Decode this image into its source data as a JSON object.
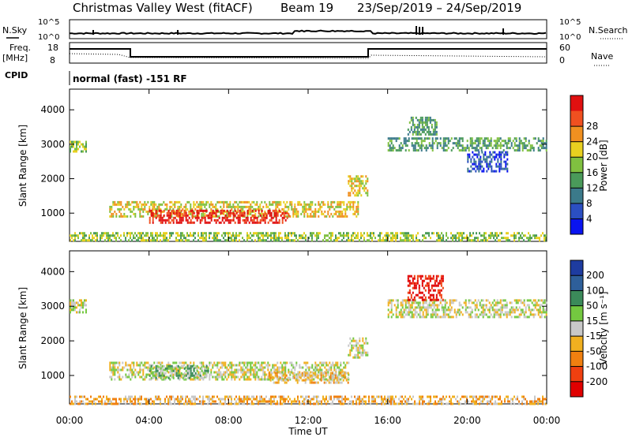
{
  "header": {
    "title": "Christmas Valley West (fitACF)",
    "beam": "Beam 19",
    "date_range": "23/Sep/2019 – 24/Sep/2019"
  },
  "summary_panels": {
    "nsky_label": "N.Sky",
    "nsky_tick_top": "10^5",
    "nsky_tick_bottom": "10^0",
    "nsearch_label": "N.Search",
    "nsearch_tick_top": "10^5",
    "nsearch_tick_bottom": "10^0",
    "freq_label_line1": "Freq.",
    "freq_label_line2": "[MHz]",
    "freq_tick_top": "18",
    "freq_tick_bottom": "8",
    "nave_label": "Nave",
    "nave_tick_top": "60",
    "nave_tick_bottom": "0",
    "cpid_label": "CPID",
    "cpid_text": "normal (fast) -151 RF"
  },
  "chart_data": [
    {
      "type": "heatmap",
      "panel": "power",
      "ylabel": "Slant Range [km]",
      "xlabel": "",
      "x_tick_labels": [
        "00:00",
        "04:00",
        "08:00",
        "12:00",
        "16:00",
        "20:00",
        "00:00"
      ],
      "y_tick_labels": [
        "1000",
        "2000",
        "3000",
        "4000"
      ],
      "xlim": [
        0,
        24
      ],
      "ylim": [
        180,
        4600
      ],
      "colorbar": {
        "label": "Power [dB]",
        "ticks": [
          "4",
          "8",
          "12",
          "16",
          "20",
          "24",
          "28"
        ],
        "colors": [
          "#0a14f0",
          "#2b4fc2",
          "#3b7a8a",
          "#4a9a5a",
          "#80c040",
          "#e8d020",
          "#f09020",
          "#f05020",
          "#e01010"
        ]
      },
      "regions": [
        {
          "x0": 2.0,
          "x1": 14.5,
          "y0": 900,
          "y1": 1350,
          "level": 5
        },
        {
          "x0": 4.0,
          "x1": 11.0,
          "y0": 700,
          "y1": 1100,
          "level": 8
        },
        {
          "x0": 0.0,
          "x1": 24.0,
          "y0": 200,
          "y1": 450,
          "level": 4
        },
        {
          "x0": 14.0,
          "x1": 15.0,
          "y0": 1500,
          "y1": 2100,
          "level": 5
        },
        {
          "x0": 0.0,
          "x1": 0.8,
          "y0": 2800,
          "y1": 3100,
          "level": 4
        },
        {
          "x0": 16.0,
          "x1": 24.0,
          "y0": 2800,
          "y1": 3200,
          "level": 3
        },
        {
          "x0": 17.0,
          "x1": 18.5,
          "y0": 3300,
          "y1": 3800,
          "level": 3
        },
        {
          "x0": 20.0,
          "x1": 22.0,
          "y0": 2200,
          "y1": 2800,
          "level": 1
        }
      ]
    },
    {
      "type": "heatmap",
      "panel": "velocity",
      "ylabel": "Slant Range [km]",
      "xlabel": "Time UT",
      "x_tick_labels": [
        "00:00",
        "04:00",
        "08:00",
        "12:00",
        "16:00",
        "20:00",
        "00:00"
      ],
      "y_tick_labels": [
        "1000",
        "2000",
        "3000",
        "4000"
      ],
      "xlim": [
        0,
        24
      ],
      "ylim": [
        180,
        4600
      ],
      "colorbar": {
        "label": "Velocity [m s⁻¹]",
        "ticks": [
          "200",
          "100",
          "50",
          "15",
          "-15",
          "-50",
          "-100",
          "-200"
        ],
        "colors": [
          "#1e3ca0",
          "#2e5f9a",
          "#3b8a5a",
          "#74c840",
          "#c8c8c8",
          "#f0b020",
          "#f08010",
          "#f04010",
          "#e00000"
        ]
      },
      "regions": [
        {
          "x0": 2.0,
          "x1": 14.0,
          "y0": 900,
          "y1": 1400,
          "level": 4
        },
        {
          "x0": 4.0,
          "x1": 7.0,
          "y0": 900,
          "y1": 1300,
          "level": 3
        },
        {
          "x0": 10.0,
          "x1": 14.0,
          "y0": 800,
          "y1": 1100,
          "level": 5
        },
        {
          "x0": 0.0,
          "x1": 24.0,
          "y0": 200,
          "y1": 420,
          "level": 5
        },
        {
          "x0": 14.0,
          "x1": 15.0,
          "y0": 1500,
          "y1": 2100,
          "level": 4
        },
        {
          "x0": 0.0,
          "x1": 0.8,
          "y0": 2800,
          "y1": 3200,
          "level": 4
        },
        {
          "x0": 16.0,
          "x1": 24.0,
          "y0": 2700,
          "y1": 3200,
          "level": 4
        },
        {
          "x0": 17.0,
          "x1": 18.8,
          "y0": 3200,
          "y1": 3900,
          "level": 8
        }
      ]
    }
  ]
}
